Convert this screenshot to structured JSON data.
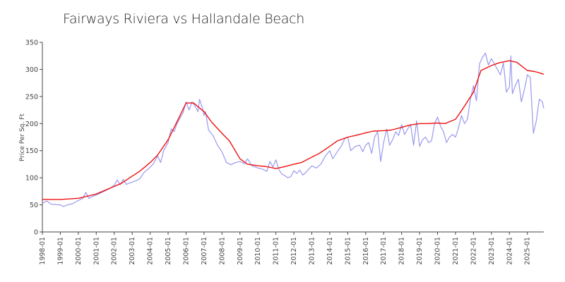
{
  "chart_data": {
    "type": "line",
    "title": "Fairways Riviera vs Hallandale Beach",
    "ylabel": "Price Per Sq. Ft",
    "xlabel": "",
    "ylim": [
      0,
      350
    ],
    "yticks": [
      0,
      50,
      100,
      150,
      200,
      250,
      300,
      350
    ],
    "xlim": [
      "1998-01",
      "2025-12"
    ],
    "xticks": [
      "1998-01",
      "1999-01",
      "2000-01",
      "2001-01",
      "2002-01",
      "2003-01",
      "2004-01",
      "2005-01",
      "2006-01",
      "2007-01",
      "2008-01",
      "2009-01",
      "2010-01",
      "2011-01",
      "2012-01",
      "2013-01",
      "2014-01",
      "2015-01",
      "2016-01",
      "2017-01",
      "2018-01",
      "2019-01",
      "2020-01",
      "2021-01",
      "2022-01",
      "2023-01",
      "2024-01",
      "2025-01"
    ],
    "grid": false,
    "legend": "none",
    "series": [
      {
        "color": "#9999ee",
        "points": [
          [
            "1998-01",
            53
          ],
          [
            "1998-04",
            57
          ],
          [
            "1998-07",
            51
          ],
          [
            "1999-01",
            50
          ],
          [
            "1999-03",
            47
          ],
          [
            "1999-06",
            50
          ],
          [
            "1999-09",
            52
          ],
          [
            "2000-01",
            58
          ],
          [
            "2000-04",
            62
          ],
          [
            "2000-06",
            73
          ],
          [
            "2000-08",
            62
          ],
          [
            "2000-10",
            65
          ],
          [
            "2001-01",
            68
          ],
          [
            "2001-04",
            72
          ],
          [
            "2001-07",
            76
          ],
          [
            "2001-10",
            80
          ],
          [
            "2002-01",
            86
          ],
          [
            "2002-03",
            96
          ],
          [
            "2002-05",
            87
          ],
          [
            "2002-07",
            97
          ],
          [
            "2002-09",
            88
          ],
          [
            "2002-12",
            91
          ],
          [
            "2003-03",
            94
          ],
          [
            "2003-06",
            98
          ],
          [
            "2003-09",
            110
          ],
          [
            "2003-12",
            117
          ],
          [
            "2004-03",
            125
          ],
          [
            "2004-06",
            140
          ],
          [
            "2004-08",
            128
          ],
          [
            "2004-10",
            150
          ],
          [
            "2005-01",
            165
          ],
          [
            "2005-03",
            190
          ],
          [
            "2005-05",
            185
          ],
          [
            "2005-07",
            200
          ],
          [
            "2005-09",
            210
          ],
          [
            "2005-11",
            220
          ],
          [
            "2006-01",
            240
          ],
          [
            "2006-03",
            225
          ],
          [
            "2006-05",
            240
          ],
          [
            "2006-07",
            232
          ],
          [
            "2006-09",
            222
          ],
          [
            "2006-10",
            245
          ],
          [
            "2006-12",
            228
          ],
          [
            "2007-01",
            215
          ],
          [
            "2007-02",
            222
          ],
          [
            "2007-04",
            188
          ],
          [
            "2007-07",
            178
          ],
          [
            "2007-10",
            160
          ],
          [
            "2008-01",
            148
          ],
          [
            "2008-04",
            128
          ],
          [
            "2008-07",
            124
          ],
          [
            "2008-10",
            128
          ],
          [
            "2009-01",
            130
          ],
          [
            "2009-04",
            126
          ],
          [
            "2009-06",
            135
          ],
          [
            "2009-09",
            122
          ],
          [
            "2010-01",
            118
          ],
          [
            "2010-04",
            116
          ],
          [
            "2010-07",
            112
          ],
          [
            "2010-09",
            130
          ],
          [
            "2010-11",
            120
          ],
          [
            "2011-01",
            133
          ],
          [
            "2011-03",
            115
          ],
          [
            "2011-05",
            107
          ],
          [
            "2011-07",
            104
          ],
          [
            "2011-09",
            100
          ],
          [
            "2011-11",
            102
          ],
          [
            "2012-01",
            113
          ],
          [
            "2012-03",
            108
          ],
          [
            "2012-05",
            114
          ],
          [
            "2012-07",
            105
          ],
          [
            "2012-09",
            110
          ],
          [
            "2013-01",
            122
          ],
          [
            "2013-04",
            118
          ],
          [
            "2013-07",
            125
          ],
          [
            "2013-10",
            140
          ],
          [
            "2014-01",
            150
          ],
          [
            "2014-03",
            135
          ],
          [
            "2014-06",
            148
          ],
          [
            "2014-09",
            160
          ],
          [
            "2014-11",
            172
          ],
          [
            "2015-01",
            175
          ],
          [
            "2015-03",
            150
          ],
          [
            "2015-06",
            158
          ],
          [
            "2015-09",
            160
          ],
          [
            "2015-11",
            148
          ],
          [
            "2016-01",
            160
          ],
          [
            "2016-03",
            165
          ],
          [
            "2016-05",
            145
          ],
          [
            "2016-07",
            175
          ],
          [
            "2016-09",
            185
          ],
          [
            "2016-11",
            130
          ],
          [
            "2017-01",
            165
          ],
          [
            "2017-03",
            190
          ],
          [
            "2017-05",
            160
          ],
          [
            "2017-07",
            170
          ],
          [
            "2017-09",
            185
          ],
          [
            "2017-11",
            178
          ],
          [
            "2018-01",
            198
          ],
          [
            "2018-03",
            180
          ],
          [
            "2018-05",
            190
          ],
          [
            "2018-07",
            198
          ],
          [
            "2018-09",
            160
          ],
          [
            "2018-11",
            205
          ],
          [
            "2019-01",
            158
          ],
          [
            "2019-03",
            170
          ],
          [
            "2019-05",
            175
          ],
          [
            "2019-07",
            165
          ],
          [
            "2019-09",
            168
          ],
          [
            "2019-11",
            200
          ],
          [
            "2020-01",
            212
          ],
          [
            "2020-03",
            195
          ],
          [
            "2020-05",
            185
          ],
          [
            "2020-07",
            165
          ],
          [
            "2020-09",
            175
          ],
          [
            "2020-11",
            180
          ],
          [
            "2021-01",
            175
          ],
          [
            "2021-03",
            192
          ],
          [
            "2021-05",
            215
          ],
          [
            "2021-07",
            200
          ],
          [
            "2021-09",
            208
          ],
          [
            "2021-11",
            245
          ],
          [
            "2022-01",
            270
          ],
          [
            "2022-03",
            242
          ],
          [
            "2022-05",
            310
          ],
          [
            "2022-07",
            322
          ],
          [
            "2022-09",
            330
          ],
          [
            "2022-11",
            308
          ],
          [
            "2023-01",
            320
          ],
          [
            "2023-03",
            310
          ],
          [
            "2023-05",
            300
          ],
          [
            "2023-07",
            290
          ],
          [
            "2023-09",
            312
          ],
          [
            "2023-11",
            258
          ],
          [
            "2024-01",
            268
          ],
          [
            "2024-02",
            325
          ],
          [
            "2024-03",
            255
          ],
          [
            "2024-05",
            270
          ],
          [
            "2024-07",
            282
          ],
          [
            "2024-09",
            240
          ],
          [
            "2024-11",
            262
          ],
          [
            "2025-01",
            290
          ],
          [
            "2025-03",
            285
          ],
          [
            "2025-05",
            182
          ],
          [
            "2025-07",
            205
          ],
          [
            "2025-09",
            245
          ],
          [
            "2025-11",
            240
          ],
          [
            "2025-12",
            228
          ]
        ]
      },
      {
        "color": "#ee1111",
        "points": [
          [
            "1998-01",
            60
          ],
          [
            "1999-01",
            60
          ],
          [
            "2000-01",
            62
          ],
          [
            "2001-01",
            70
          ],
          [
            "2002-01",
            84
          ],
          [
            "2002-06",
            90
          ],
          [
            "2003-01",
            103
          ],
          [
            "2003-06",
            112
          ],
          [
            "2004-01",
            128
          ],
          [
            "2004-06",
            142
          ],
          [
            "2005-01",
            170
          ],
          [
            "2005-06",
            198
          ],
          [
            "2006-01",
            238
          ],
          [
            "2006-06",
            238
          ],
          [
            "2007-01",
            222
          ],
          [
            "2007-06",
            203
          ],
          [
            "2008-01",
            182
          ],
          [
            "2008-06",
            168
          ],
          [
            "2009-01",
            135
          ],
          [
            "2009-06",
            125
          ],
          [
            "2010-01",
            122
          ],
          [
            "2010-06",
            121
          ],
          [
            "2011-01",
            117
          ],
          [
            "2011-06",
            120
          ],
          [
            "2012-01",
            125
          ],
          [
            "2012-06",
            128
          ],
          [
            "2013-01",
            138
          ],
          [
            "2013-06",
            145
          ],
          [
            "2014-01",
            158
          ],
          [
            "2014-06",
            168
          ],
          [
            "2015-01",
            175
          ],
          [
            "2015-06",
            178
          ],
          [
            "2016-01",
            183
          ],
          [
            "2016-06",
            186
          ],
          [
            "2017-01",
            187
          ],
          [
            "2017-06",
            188
          ],
          [
            "2018-01",
            193
          ],
          [
            "2018-06",
            197
          ],
          [
            "2019-01",
            200
          ],
          [
            "2019-06",
            200
          ],
          [
            "2020-01",
            201
          ],
          [
            "2020-06",
            200
          ],
          [
            "2021-01",
            208
          ],
          [
            "2021-06",
            228
          ],
          [
            "2022-01",
            258
          ],
          [
            "2022-06",
            298
          ],
          [
            "2023-01",
            307
          ],
          [
            "2023-06",
            312
          ],
          [
            "2024-01",
            316
          ],
          [
            "2024-06",
            313
          ],
          [
            "2025-01",
            298
          ],
          [
            "2025-06",
            296
          ],
          [
            "2025-12",
            291
          ]
        ]
      }
    ]
  }
}
